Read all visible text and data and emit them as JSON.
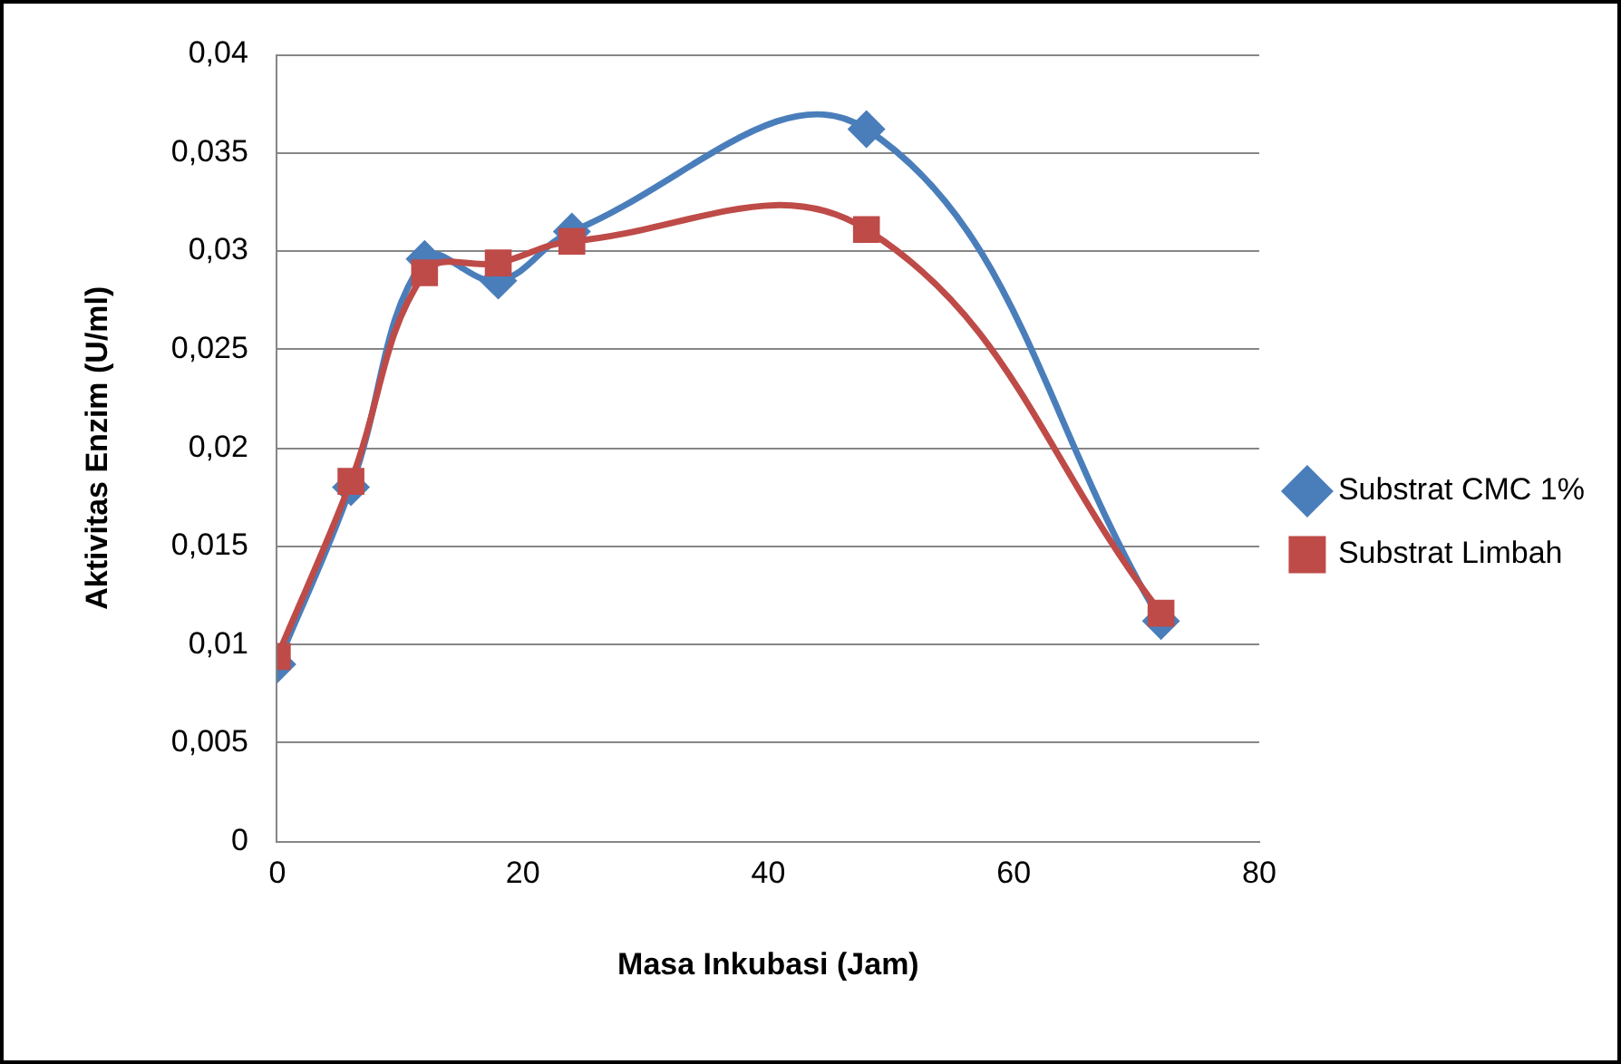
{
  "chart_data": {
    "type": "line",
    "xlabel": "Masa Inkubasi (Jam)",
    "ylabel": "Aktivitas Enzim (U/ml)",
    "x": [
      0,
      6,
      12,
      18,
      24,
      48,
      72
    ],
    "series": [
      {
        "name": "Substrat CMC 1%",
        "color": "#4a7ebb",
        "marker": "diamond",
        "values": [
          0.009,
          0.018,
          0.0296,
          0.0285,
          0.031,
          0.0362,
          0.0112
        ]
      },
      {
        "name": "Substrat Limbah",
        "color": "#be4b48",
        "marker": "square",
        "values": [
          0.0094,
          0.0183,
          0.0289,
          0.0294,
          0.0305,
          0.0311,
          0.0116
        ]
      }
    ],
    "xlim": [
      0,
      80
    ],
    "xticks": [
      0,
      20,
      40,
      60,
      80
    ],
    "ylim": [
      0,
      0.04
    ],
    "yticks": [
      0,
      {
        "value": 0.005,
        "label": "0,005"
      },
      {
        "value": 0.01,
        "label": "0,01"
      },
      {
        "value": 0.015,
        "label": "0,015"
      },
      {
        "value": 0.02,
        "label": "0,02"
      },
      {
        "value": 0.025,
        "label": "0,025"
      },
      {
        "value": 0.03,
        "label": "0,03"
      },
      {
        "value": 0.035,
        "label": "0,035"
      },
      {
        "value": 0.04,
        "label": "0,04"
      }
    ],
    "grid": "y",
    "legend": "right"
  }
}
